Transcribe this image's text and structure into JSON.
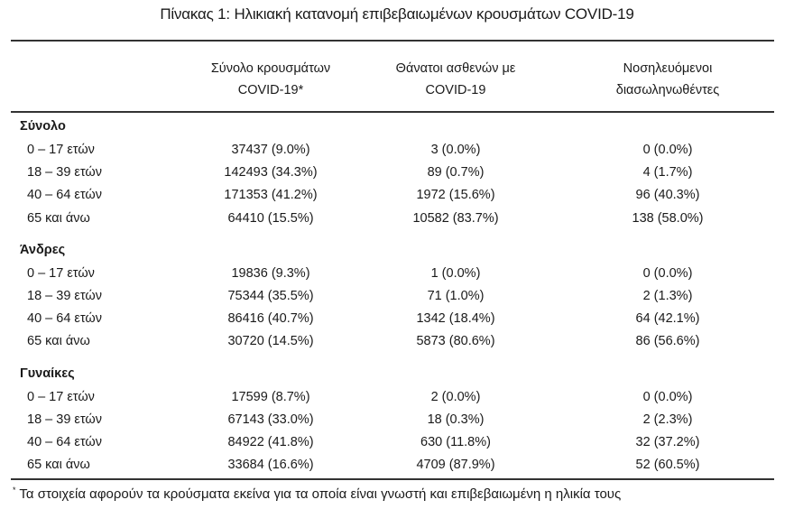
{
  "title": "Πίνακας 1: Ηλικιακή κατανομή επιβεβαιωμένων κρουσμάτων COVID-19",
  "columns": [
    {
      "line1": "Σύνολο κρουσμάτων",
      "line2": "COVID-19*"
    },
    {
      "line1": "Θάνατοι ασθενών με",
      "line2": "COVID-19"
    },
    {
      "line1": "Νοσηλευόμενοι",
      "line2": "διασωληνωθέντες"
    }
  ],
  "groups": [
    {
      "name": "Σύνολο",
      "rows": [
        {
          "label": "0 – 17 ετών",
          "values": [
            "37437 (9.0%)",
            "3 (0.0%)",
            "0 (0.0%)"
          ]
        },
        {
          "label": "18 – 39 ετών",
          "values": [
            "142493 (34.3%)",
            "89 (0.7%)",
            "4 (1.7%)"
          ]
        },
        {
          "label": "40 – 64 ετών",
          "values": [
            "171353 (41.2%)",
            "1972 (15.6%)",
            "96 (40.3%)"
          ]
        },
        {
          "label": "65 και άνω",
          "values": [
            "64410 (15.5%)",
            "10582 (83.7%)",
            "138 (58.0%)"
          ]
        }
      ]
    },
    {
      "name": "Άνδρες",
      "rows": [
        {
          "label": "0 – 17 ετών",
          "values": [
            "19836 (9.3%)",
            "1 (0.0%)",
            "0 (0.0%)"
          ]
        },
        {
          "label": "18 – 39 ετών",
          "values": [
            "75344 (35.5%)",
            "71 (1.0%)",
            "2 (1.3%)"
          ]
        },
        {
          "label": "40 – 64 ετών",
          "values": [
            "86416 (40.7%)",
            "1342 (18.4%)",
            "64 (42.1%)"
          ]
        },
        {
          "label": "65 και άνω",
          "values": [
            "30720 (14.5%)",
            "5873 (80.6%)",
            "86 (56.6%)"
          ]
        }
      ]
    },
    {
      "name": "Γυναίκες",
      "rows": [
        {
          "label": "0 – 17 ετών",
          "values": [
            "17599 (8.7%)",
            "2 (0.0%)",
            "0 (0.0%)"
          ]
        },
        {
          "label": "18 – 39 ετών",
          "values": [
            "67143 (33.0%)",
            "18 (0.3%)",
            "2 (2.3%)"
          ]
        },
        {
          "label": "40 – 64 ετών",
          "values": [
            "84922 (41.8%)",
            "630 (11.8%)",
            "32 (37.2%)"
          ]
        },
        {
          "label": "65 και άνω",
          "values": [
            "33684 (16.6%)",
            "4709 (87.9%)",
            "52 (60.5%)"
          ]
        }
      ]
    }
  ],
  "footnote": {
    "mark": "*",
    "text": "Τα στοιχεία αφορούν τα κρούσματα εκείνα για τα οποία είναι γνωστή και επιβεβαιωμένη η ηλικία τους"
  }
}
